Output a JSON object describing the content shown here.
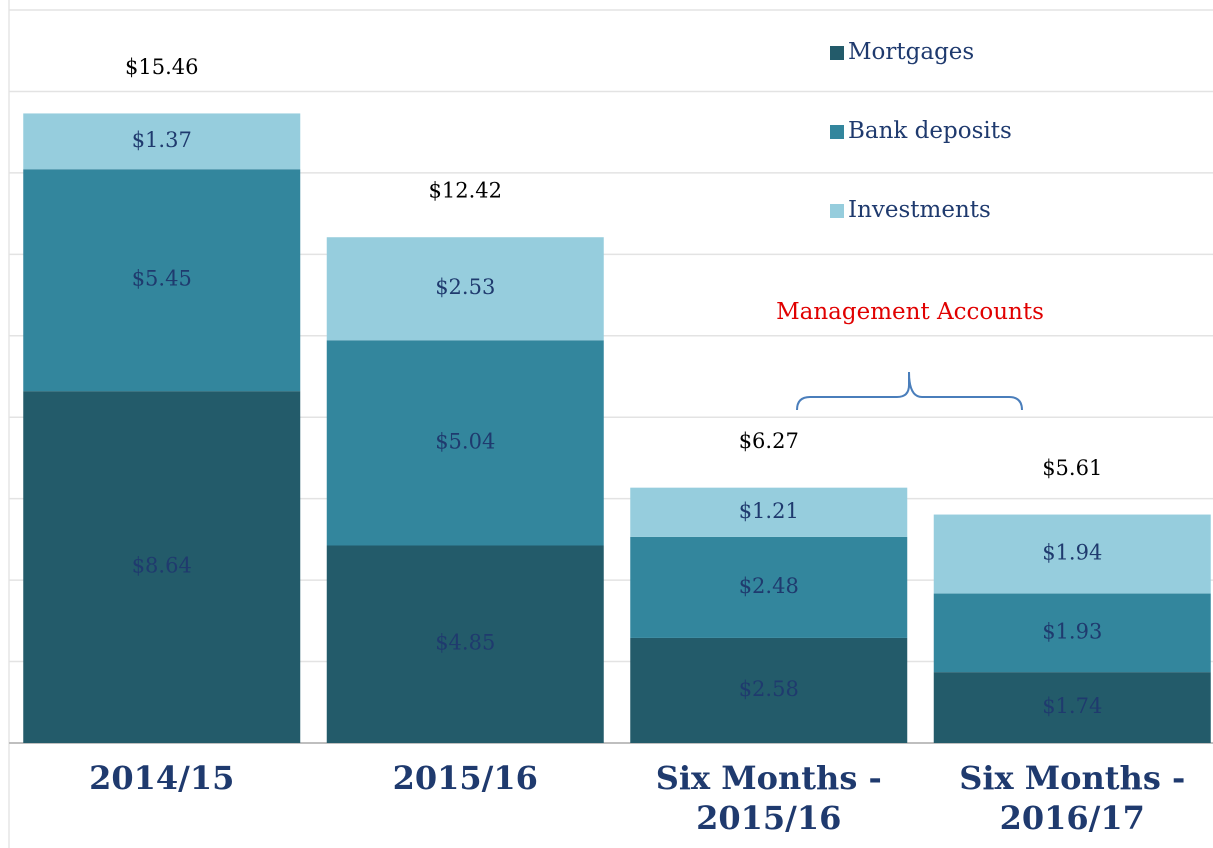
{
  "chart_data": {
    "type": "stacked_bar",
    "categories": [
      "2014/15",
      "2015/16",
      "Six Months - 2015/16",
      "Six Months - 2016/17"
    ],
    "series": [
      {
        "name": "Mortgages",
        "color": "#235b6a",
        "values": [
          8.64,
          4.85,
          2.58,
          1.74
        ],
        "value_labels": [
          "$8.64",
          "$4.85",
          "$2.58",
          "$1.74"
        ]
      },
      {
        "name": "Bank deposits",
        "color": "#33869d",
        "values": [
          5.45,
          5.04,
          2.48,
          1.93
        ],
        "value_labels": [
          "$5.45",
          "$5.04",
          "$2.48",
          "$1.93"
        ]
      },
      {
        "name": "Investments",
        "color": "#96cddd",
        "values": [
          1.37,
          2.53,
          1.21,
          1.94
        ],
        "value_labels": [
          "$1.37",
          "$2.53",
          "$1.21",
          "$1.94"
        ]
      }
    ],
    "totals": [
      15.46,
      12.42,
      6.27,
      5.61
    ],
    "total_labels": [
      "$15.46",
      "$12.42",
      "$6.27",
      "$5.61"
    ],
    "annotation": "Management Accounts",
    "ylim": [
      0,
      18
    ],
    "yticks": [
      0,
      2,
      4,
      6,
      8,
      10,
      12,
      14,
      16,
      18
    ],
    "grid": true,
    "legend": "upper right"
  }
}
